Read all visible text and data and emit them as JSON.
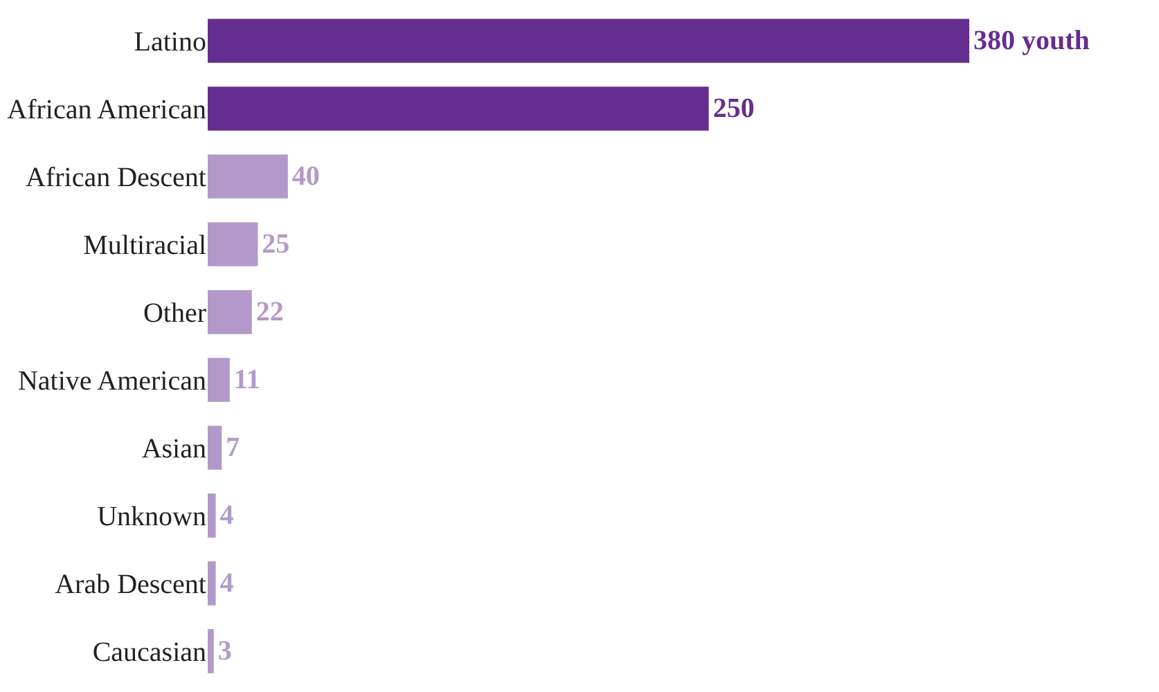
{
  "chart_data": {
    "type": "bar",
    "orientation": "horizontal",
    "categories": [
      "Latino",
      "African American",
      "African Descent",
      "Multiracial",
      "Other",
      "Native American",
      "Asian",
      "Unknown",
      "Arab Descent",
      "Caucasian"
    ],
    "values": [
      380,
      250,
      40,
      25,
      22,
      11,
      7,
      4,
      4,
      3
    ],
    "colors": [
      "#662d91",
      "#662d91",
      "#b399c9",
      "#b399c9",
      "#b399c9",
      "#b399c9",
      "#b399c9",
      "#b399c9",
      "#b399c9",
      "#b399c9"
    ],
    "value_labels": [
      "380 youth",
      "250",
      "40",
      "25",
      "22",
      "11",
      "7",
      "4",
      "4",
      "3"
    ]
  }
}
